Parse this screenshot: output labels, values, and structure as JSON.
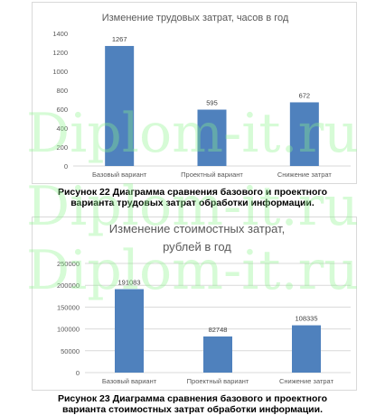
{
  "watermark_text": "Diplom-it.ru",
  "captions": {
    "c1_line1": "Рисунок 22 Диаграмма сравнения базового и проектного",
    "c1_line2": "варианта трудовых затрат обработки информации.",
    "c2_line1": "Рисунок 23 Диаграмма сравнения базового и проектного",
    "c2_line2": "варианта стоимостных затрат обработки информации."
  },
  "colors": {
    "bar": "#4f81bd",
    "axis_text": "#595959",
    "grid": "#d9d9d9"
  },
  "chart_data": [
    {
      "type": "bar",
      "title": "Изменение  трудовых затрат, часов в год",
      "title_lines": [
        "Изменение  трудовых затрат, часов в год"
      ],
      "categories": [
        "Базовый вариант",
        "Проектный вариант",
        "Снижение затрат"
      ],
      "values": [
        1267,
        595,
        672
      ],
      "ylim": [
        0,
        1400
      ],
      "yticks": [
        0,
        200,
        400,
        600,
        800,
        1000,
        1200,
        1400
      ],
      "grid": false,
      "data_labels": true
    },
    {
      "type": "bar",
      "title": "Изменение  стоимостных затрат, рублей в год",
      "title_lines": [
        "Изменение  стоимостных затрат,",
        "рублей в год"
      ],
      "categories": [
        "Базовый вариант",
        "Проектный вариант",
        "Снижение затрат"
      ],
      "values": [
        191083,
        82748,
        108335
      ],
      "ylim": [
        0,
        250000
      ],
      "yticks": [
        0,
        50000,
        100000,
        150000,
        200000,
        250000
      ],
      "grid": true,
      "data_labels": true
    }
  ]
}
